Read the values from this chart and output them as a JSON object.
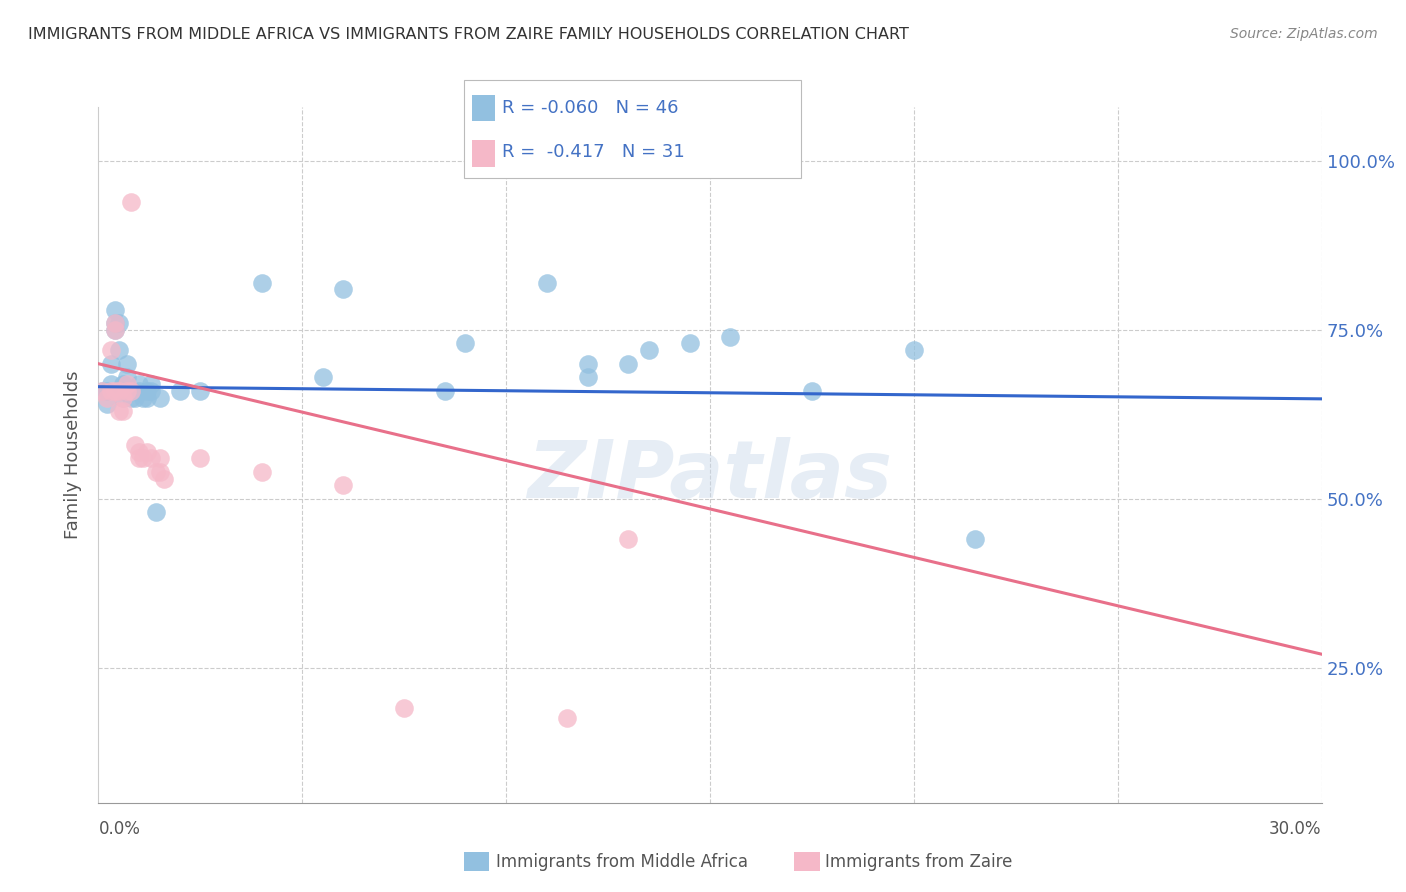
{
  "title": "IMMIGRANTS FROM MIDDLE AFRICA VS IMMIGRANTS FROM ZAIRE FAMILY HOUSEHOLDS CORRELATION CHART",
  "source": "Source: ZipAtlas.com",
  "ylabel": "Family Households",
  "ytick_labels": [
    "100.0%",
    "75.0%",
    "50.0%",
    "25.0%"
  ],
  "ytick_values": [
    1.0,
    0.75,
    0.5,
    0.25
  ],
  "xlim": [
    0.0,
    0.3
  ],
  "ylim": [
    0.05,
    1.08
  ],
  "legend_blue_R": "-0.060",
  "legend_blue_N": "46",
  "legend_pink_R": "-0.417",
  "legend_pink_N": "31",
  "blue_color": "#92c0e0",
  "pink_color": "#f5b8c8",
  "trendline_blue_color": "#3366cc",
  "trendline_pink_color": "#e8708a",
  "blue_scatter": [
    [
      0.001,
      0.66
    ],
    [
      0.002,
      0.66
    ],
    [
      0.002,
      0.64
    ],
    [
      0.003,
      0.67
    ],
    [
      0.003,
      0.7
    ],
    [
      0.004,
      0.75
    ],
    [
      0.004,
      0.76
    ],
    [
      0.004,
      0.78
    ],
    [
      0.005,
      0.72
    ],
    [
      0.005,
      0.76
    ],
    [
      0.005,
      0.66
    ],
    [
      0.006,
      0.66
    ],
    [
      0.006,
      0.67
    ],
    [
      0.006,
      0.65
    ],
    [
      0.007,
      0.66
    ],
    [
      0.007,
      0.68
    ],
    [
      0.007,
      0.7
    ],
    [
      0.008,
      0.65
    ],
    [
      0.008,
      0.66
    ],
    [
      0.009,
      0.65
    ],
    [
      0.01,
      0.66
    ],
    [
      0.01,
      0.67
    ],
    [
      0.011,
      0.65
    ],
    [
      0.012,
      0.65
    ],
    [
      0.012,
      0.66
    ],
    [
      0.013,
      0.66
    ],
    [
      0.013,
      0.67
    ],
    [
      0.014,
      0.48
    ],
    [
      0.015,
      0.65
    ],
    [
      0.02,
      0.66
    ],
    [
      0.025,
      0.66
    ],
    [
      0.04,
      0.82
    ],
    [
      0.055,
      0.68
    ],
    [
      0.06,
      0.81
    ],
    [
      0.085,
      0.66
    ],
    [
      0.09,
      0.73
    ],
    [
      0.11,
      0.82
    ],
    [
      0.12,
      0.68
    ],
    [
      0.12,
      0.7
    ],
    [
      0.13,
      0.7
    ],
    [
      0.135,
      0.72
    ],
    [
      0.145,
      0.73
    ],
    [
      0.155,
      0.74
    ],
    [
      0.175,
      0.66
    ],
    [
      0.2,
      0.72
    ],
    [
      0.215,
      0.44
    ]
  ],
  "pink_scatter": [
    [
      0.001,
      0.66
    ],
    [
      0.002,
      0.65
    ],
    [
      0.003,
      0.66
    ],
    [
      0.003,
      0.72
    ],
    [
      0.004,
      0.75
    ],
    [
      0.004,
      0.76
    ],
    [
      0.004,
      0.66
    ],
    [
      0.005,
      0.66
    ],
    [
      0.005,
      0.63
    ],
    [
      0.006,
      0.65
    ],
    [
      0.006,
      0.63
    ],
    [
      0.007,
      0.66
    ],
    [
      0.007,
      0.67
    ],
    [
      0.008,
      0.66
    ],
    [
      0.008,
      0.94
    ],
    [
      0.009,
      0.58
    ],
    [
      0.01,
      0.57
    ],
    [
      0.01,
      0.56
    ],
    [
      0.011,
      0.56
    ],
    [
      0.012,
      0.57
    ],
    [
      0.013,
      0.56
    ],
    [
      0.014,
      0.54
    ],
    [
      0.015,
      0.56
    ],
    [
      0.015,
      0.54
    ],
    [
      0.016,
      0.53
    ],
    [
      0.025,
      0.56
    ],
    [
      0.04,
      0.54
    ],
    [
      0.06,
      0.52
    ],
    [
      0.075,
      0.19
    ],
    [
      0.13,
      0.44
    ],
    [
      0.115,
      0.175
    ]
  ],
  "grid_color": "#cccccc",
  "background_color": "#ffffff",
  "watermark": "ZIPatlas",
  "blue_trend_x": [
    0.0,
    0.3
  ],
  "blue_trend_y": [
    0.666,
    0.648
  ],
  "pink_trend_x": [
    0.0,
    0.3
  ],
  "pink_trend_y": [
    0.7,
    0.27
  ]
}
